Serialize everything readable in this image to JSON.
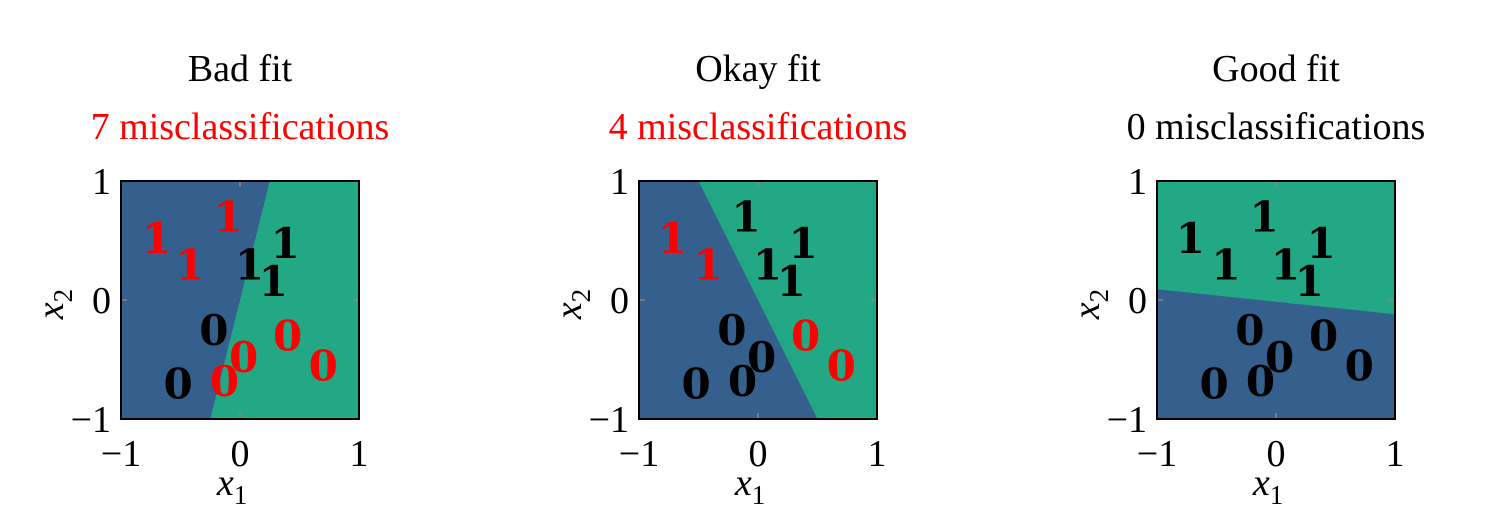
{
  "colors": {
    "class0": "#355f8d",
    "class1": "#22a884",
    "misclassified": "#ff0000",
    "correct": "#000000",
    "frame": "#000000"
  },
  "chart_data": [
    {
      "type": "scatter",
      "title": "Bad fit",
      "subtitle": "7 misclassifications",
      "subtitle_highlight": true,
      "xlabel": "x",
      "xlabel_sub": "1",
      "ylabel": "x",
      "ylabel_sub": "2",
      "xlim": [
        -1,
        1
      ],
      "ylim": [
        -1,
        1
      ],
      "xticks": [
        "−1",
        "0",
        "1"
      ],
      "yticks": [
        "−1",
        "0",
        "1"
      ],
      "boundary": {
        "below_class": "0",
        "polygon": [
          [
            -1,
            -1
          ],
          [
            -0.25,
            -1
          ],
          [
            0.25,
            1
          ],
          [
            -1,
            1
          ]
        ]
      },
      "points": [
        {
          "x": -0.7,
          "y": 0.52,
          "label": "1",
          "misclassified": true
        },
        {
          "x": -0.1,
          "y": 0.7,
          "label": "1",
          "misclassified": true
        },
        {
          "x": -0.42,
          "y": 0.3,
          "label": "1",
          "misclassified": true
        },
        {
          "x": 0.08,
          "y": 0.3,
          "label": "1",
          "misclassified": false
        },
        {
          "x": 0.38,
          "y": 0.48,
          "label": "1",
          "misclassified": false
        },
        {
          "x": 0.28,
          "y": 0.16,
          "label": "1",
          "misclassified": false
        },
        {
          "x": -0.22,
          "y": -0.25,
          "label": "0",
          "misclassified": false
        },
        {
          "x": 0.4,
          "y": -0.3,
          "label": "0",
          "misclassified": true
        },
        {
          "x": 0.03,
          "y": -0.48,
          "label": "0",
          "misclassified": true
        },
        {
          "x": -0.52,
          "y": -0.7,
          "label": "0",
          "misclassified": false
        },
        {
          "x": -0.13,
          "y": -0.68,
          "label": "0",
          "misclassified": true
        },
        {
          "x": 0.7,
          "y": -0.55,
          "label": "0",
          "misclassified": true
        }
      ]
    },
    {
      "type": "scatter",
      "title": "Okay fit",
      "subtitle": "4 misclassifications",
      "subtitle_highlight": true,
      "xlabel": "x",
      "xlabel_sub": "1",
      "ylabel": "x",
      "ylabel_sub": "2",
      "xlim": [
        -1,
        1
      ],
      "ylim": [
        -1,
        1
      ],
      "xticks": [
        "−1",
        "0",
        "1"
      ],
      "yticks": [
        "−1",
        "0",
        "1"
      ],
      "boundary": {
        "below_class": "0",
        "polygon": [
          [
            -1,
            -1
          ],
          [
            0.5,
            -1
          ],
          [
            -0.5,
            1
          ],
          [
            -1,
            1
          ]
        ]
      },
      "points": [
        {
          "x": -0.72,
          "y": 0.52,
          "label": "1",
          "misclassified": true
        },
        {
          "x": -0.1,
          "y": 0.7,
          "label": "1",
          "misclassified": false
        },
        {
          "x": -0.42,
          "y": 0.3,
          "label": "1",
          "misclassified": true
        },
        {
          "x": 0.08,
          "y": 0.3,
          "label": "1",
          "misclassified": false
        },
        {
          "x": 0.38,
          "y": 0.48,
          "label": "1",
          "misclassified": false
        },
        {
          "x": 0.28,
          "y": 0.16,
          "label": "1",
          "misclassified": false
        },
        {
          "x": -0.22,
          "y": -0.25,
          "label": "0",
          "misclassified": false
        },
        {
          "x": 0.4,
          "y": -0.3,
          "label": "0",
          "misclassified": true
        },
        {
          "x": 0.03,
          "y": -0.48,
          "label": "0",
          "misclassified": false
        },
        {
          "x": -0.52,
          "y": -0.7,
          "label": "0",
          "misclassified": false
        },
        {
          "x": -0.13,
          "y": -0.68,
          "label": "0",
          "misclassified": false
        },
        {
          "x": 0.7,
          "y": -0.55,
          "label": "0",
          "misclassified": true
        }
      ]
    },
    {
      "type": "scatter",
      "title": "Good fit",
      "subtitle": "0 misclassifications",
      "subtitle_highlight": false,
      "xlabel": "x",
      "xlabel_sub": "1",
      "ylabel": "x",
      "ylabel_sub": "2",
      "xlim": [
        -1,
        1
      ],
      "ylim": [
        -1,
        1
      ],
      "xticks": [
        "−1",
        "0",
        "1"
      ],
      "yticks": [
        "−1",
        "0",
        "1"
      ],
      "boundary": {
        "below_class": "0",
        "polygon": [
          [
            -1,
            -1
          ],
          [
            1,
            -1
          ],
          [
            1,
            -0.12
          ],
          [
            -1,
            0.09
          ]
        ]
      },
      "points": [
        {
          "x": -0.72,
          "y": 0.52,
          "label": "1",
          "misclassified": false
        },
        {
          "x": -0.1,
          "y": 0.7,
          "label": "1",
          "misclassified": false
        },
        {
          "x": -0.42,
          "y": 0.3,
          "label": "1",
          "misclassified": false
        },
        {
          "x": 0.08,
          "y": 0.3,
          "label": "1",
          "misclassified": false
        },
        {
          "x": 0.38,
          "y": 0.48,
          "label": "1",
          "misclassified": false
        },
        {
          "x": 0.28,
          "y": 0.16,
          "label": "1",
          "misclassified": false
        },
        {
          "x": -0.22,
          "y": -0.25,
          "label": "0",
          "misclassified": false
        },
        {
          "x": 0.4,
          "y": -0.3,
          "label": "0",
          "misclassified": false
        },
        {
          "x": 0.03,
          "y": -0.48,
          "label": "0",
          "misclassified": false
        },
        {
          "x": -0.52,
          "y": -0.7,
          "label": "0",
          "misclassified": false
        },
        {
          "x": -0.13,
          "y": -0.68,
          "label": "0",
          "misclassified": false
        },
        {
          "x": 0.7,
          "y": -0.55,
          "label": "0",
          "misclassified": false
        }
      ]
    }
  ]
}
